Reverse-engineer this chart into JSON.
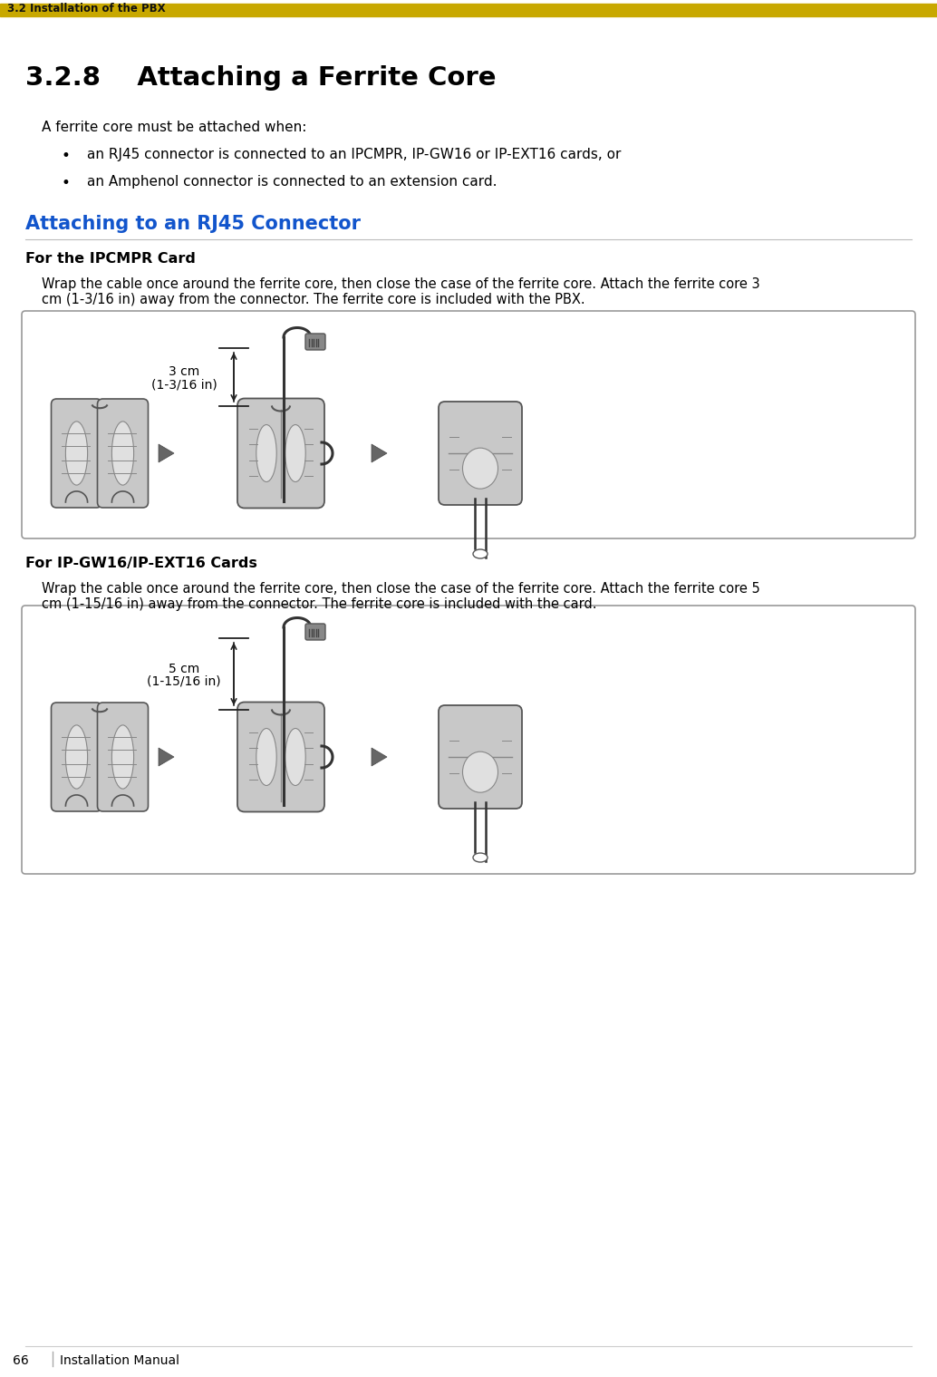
{
  "page_title": "3.2 Installation of the PBX",
  "section_title": "3.2.8    Attaching a Ferrite Core",
  "header_bar_color": "#C8A800",
  "bg_color": "#FFFFFF",
  "intro_text": "A ferrite core must be attached when:",
  "bullets": [
    "an RJ45 connector is connected to an IPCMPR, IP-GW16 or IP-EXT16 cards, or",
    "an Amphenol connector is connected to an extension card."
  ],
  "blue_section_title": "Attaching to an RJ45 Connector",
  "blue_color": "#1255CC",
  "subsection1_title": "For the IPCMPR Card",
  "body1_line1": "Wrap the cable once around the ferrite core, then close the case of the ferrite core. Attach the ferrite core 3",
  "body1_line2": "cm (1-3/16 in) away from the connector. The ferrite core is included with the PBX.",
  "diagram1_label_line1": "3 cm",
  "diagram1_label_line2": "(1-3/16 in)",
  "subsection2_title": "For IP-GW16/IP-EXT16 Cards",
  "body2_line1": "Wrap the cable once around the ferrite core, then close the case of the ferrite core. Attach the ferrite core 5",
  "body2_line2": "cm (1-15/16 in) away from the connector. The ferrite core is included with the card.",
  "diagram2_label_line1": "5 cm",
  "diagram2_label_line2": "(1-15/16 in)",
  "footer_page": "66",
  "footer_text": "Installation Manual",
  "box_border": "#999999",
  "ferrite_body": "#C8C8C8",
  "ferrite_dark": "#555555",
  "ferrite_mid": "#888888",
  "ferrite_light": "#E0E0E0",
  "arrow_color": "#666666",
  "cable_color": "#333333",
  "line_color": "#222222"
}
